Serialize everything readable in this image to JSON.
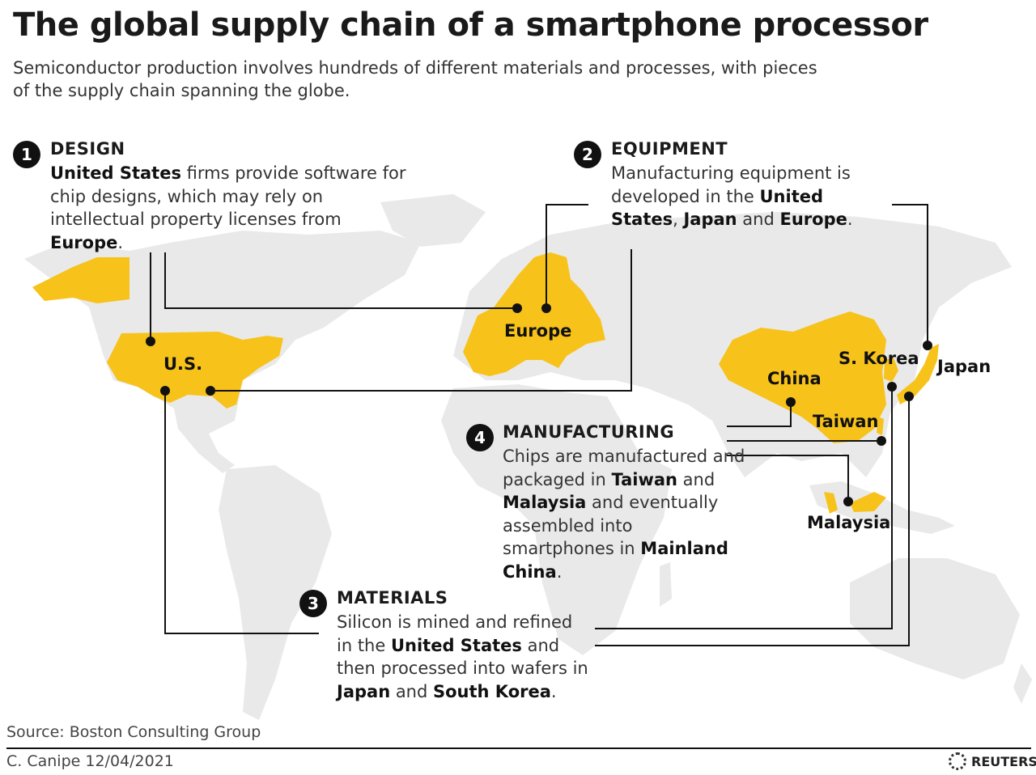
{
  "title": "The global supply chain of a smartphone processor",
  "subtitle": "Semiconductor production involves hundreds of different materials and processes, with pieces of the supply chain spanning the globe.",
  "colors": {
    "highlight": "#f7c21a",
    "land": "#e9e9e9",
    "leader": "#111111"
  },
  "steps": {
    "design": {
      "number": "1",
      "title": "DESIGN",
      "body": [
        {
          "t": "United States",
          "b": true
        },
        {
          "t": " firms provide software for chip designs, which may rely on intellectual property licenses from ",
          "b": false
        },
        {
          "t": "Europe",
          "b": true
        },
        {
          "t": ".",
          "b": false
        }
      ]
    },
    "equipment": {
      "number": "2",
      "title": "EQUIPMENT",
      "body": [
        {
          "t": "Manufacturing equipment is developed in the ",
          "b": false
        },
        {
          "t": "United States",
          "b": true
        },
        {
          "t": ", ",
          "b": false
        },
        {
          "t": "Japan",
          "b": true
        },
        {
          "t": " and ",
          "b": false
        },
        {
          "t": "Europe",
          "b": true
        },
        {
          "t": ".",
          "b": false
        }
      ]
    },
    "materials": {
      "number": "3",
      "title": "MATERIALS",
      "body": [
        {
          "t": "Silicon is mined and refined in the ",
          "b": false
        },
        {
          "t": "United States",
          "b": true
        },
        {
          "t": " and then processed into wafers in ",
          "b": false
        },
        {
          "t": "Japan",
          "b": true
        },
        {
          "t": " and ",
          "b": false
        },
        {
          "t": "South Korea",
          "b": true
        },
        {
          "t": ".",
          "b": false
        }
      ]
    },
    "manufacturing": {
      "number": "4",
      "title": "MANUFACTURING",
      "body": [
        {
          "t": "Chips are manufactured and packaged in ",
          "b": false
        },
        {
          "t": "Taiwan",
          "b": true
        },
        {
          "t": " and ",
          "b": false
        },
        {
          "t": "Malaysia",
          "b": true
        },
        {
          "t": " and eventually assembled into smartphones in ",
          "b": false
        },
        {
          "t": "Mainland China",
          "b": true
        },
        {
          "t": ".",
          "b": false
        }
      ]
    }
  },
  "map_labels": {
    "us": "U.S.",
    "europe": "Europe",
    "china": "China",
    "s_korea": "S. Korea",
    "japan": "Japan",
    "taiwan": "Taiwan",
    "malaysia": "Malaysia"
  },
  "source": "Source: Boston Consulting Group",
  "credit": "C. Canipe 12/04/2021",
  "logo_text": "REUTERS"
}
